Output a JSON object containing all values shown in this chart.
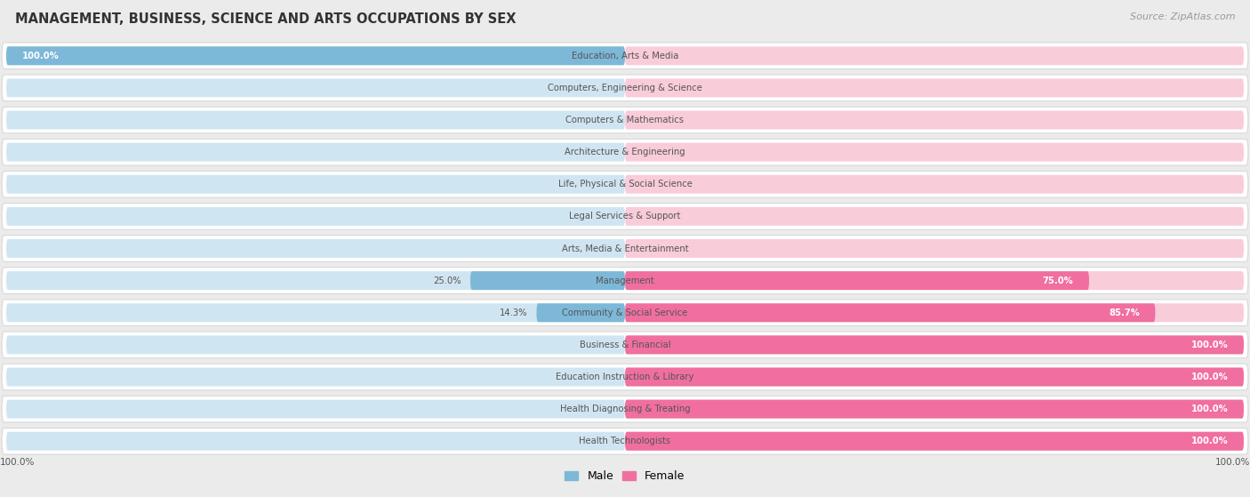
{
  "title": "MANAGEMENT, BUSINESS, SCIENCE AND ARTS OCCUPATIONS BY SEX",
  "source": "Source: ZipAtlas.com",
  "categories": [
    "Education, Arts & Media",
    "Computers, Engineering & Science",
    "Computers & Mathematics",
    "Architecture & Engineering",
    "Life, Physical & Social Science",
    "Legal Services & Support",
    "Arts, Media & Entertainment",
    "Management",
    "Community & Social Service",
    "Business & Financial",
    "Education Instruction & Library",
    "Health Diagnosing & Treating",
    "Health Technologists"
  ],
  "male_pct": [
    100.0,
    0.0,
    0.0,
    0.0,
    0.0,
    0.0,
    0.0,
    25.0,
    14.3,
    0.0,
    0.0,
    0.0,
    0.0
  ],
  "female_pct": [
    0.0,
    0.0,
    0.0,
    0.0,
    0.0,
    0.0,
    0.0,
    75.0,
    85.7,
    100.0,
    100.0,
    100.0,
    100.0
  ],
  "male_color": "#7db8d8",
  "male_color_light": "#d0e5f2",
  "female_color": "#f06fa0",
  "female_color_light": "#f9ccd9",
  "bg_color": "#ebebeb",
  "text_color": "#555555",
  "title_color": "#333333",
  "legend_male": "Male",
  "legend_female": "Female",
  "label_threshold": 5.0
}
